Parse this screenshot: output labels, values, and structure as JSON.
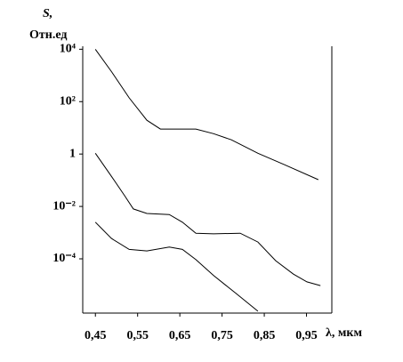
{
  "chart_data": {
    "type": "line",
    "ylabel": "S,",
    "yunit": "Отн.ед",
    "xlabel": "λ, мкм",
    "yscale": "log",
    "color": "#000000",
    "xlim": [
      0.42,
      1.01
    ],
    "xticks": [
      {
        "value": 0.45,
        "label": "0,45"
      },
      {
        "value": 0.55,
        "label": "0,55"
      },
      {
        "value": 0.65,
        "label": "0,65"
      },
      {
        "value": 0.75,
        "label": "0,75"
      },
      {
        "value": 0.85,
        "label": "0,85"
      },
      {
        "value": 0.95,
        "label": "0,95"
      }
    ],
    "ylim": [
      8.5e-07,
      13000
    ],
    "yticks": [
      {
        "value": 10000,
        "label": "10⁴"
      },
      {
        "value": 100,
        "label": "10²"
      },
      1,
      {
        "value": 0.01,
        "label": "10⁻²"
      },
      {
        "value": 0.0001,
        "label": "10⁻⁴"
      }
    ],
    "series": [
      {
        "color": "#000000",
        "x": [
          0.45,
          0.488,
          0.53,
          0.572,
          0.604,
          0.646,
          0.688,
          0.73,
          0.772,
          0.835,
          0.898,
          0.978
        ],
        "values": [
          10000,
          1400,
          140,
          19.5,
          9,
          9,
          9,
          6,
          3.5,
          1.07,
          0.39,
          0.105
        ]
      },
      {
        "color": "#000000",
        "x": [
          0.45,
          0.488,
          0.519,
          0.54,
          0.572,
          0.625,
          0.656,
          0.688,
          0.73,
          0.793,
          0.835,
          0.877,
          0.919,
          0.951,
          0.983
        ],
        "values": [
          1.07,
          0.14,
          0.026,
          0.008,
          0.0054,
          0.0049,
          0.0025,
          0.00095,
          0.0009,
          0.00095,
          0.00044,
          8.5e-05,
          2.6e-05,
          1.32e-05,
          9.5e-06
        ]
      },
      {
        "color": "#000000",
        "x": [
          0.45,
          0.488,
          0.53,
          0.572,
          0.625,
          0.656,
          0.688,
          0.73,
          0.783,
          0.835
        ],
        "values": [
          0.0025,
          0.0006,
          0.00023,
          0.0002,
          0.00028,
          0.00023,
          9.3e-05,
          2.3e-05,
          4.8e-06,
          1e-06
        ]
      }
    ]
  }
}
